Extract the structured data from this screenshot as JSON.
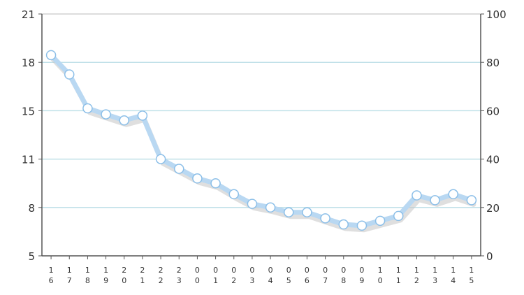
{
  "chart_data": {
    "type": "line",
    "title": "",
    "xlabel": "",
    "ylabel": "",
    "categories": [
      "16",
      "17",
      "18",
      "19",
      "20",
      "21",
      "22",
      "23",
      "00",
      "01",
      "02",
      "03",
      "04",
      "05",
      "06",
      "07",
      "08",
      "09",
      "10",
      "11",
      "12",
      "13",
      "14",
      "15"
    ],
    "series": [
      {
        "values": [
          83,
          75,
          61,
          58.5,
          56,
          58,
          40,
          36,
          32,
          30,
          25.5,
          21.5,
          20,
          18,
          18,
          15.5,
          13,
          12.5,
          14.5,
          16.5,
          25,
          23,
          25.5,
          23
        ]
      }
    ],
    "ylim_right": [
      0,
      100
    ],
    "yticks_right": [
      0,
      20,
      40,
      60,
      80,
      100
    ],
    "yticks_left": [
      "5",
      "8",
      "11",
      "15",
      "18",
      "21"
    ],
    "grid": true,
    "colors": {
      "line": "#b9d8f2",
      "shadow": "#c4c4c4",
      "marker_fill": "#ffffff",
      "marker_stroke": "#8cbfe8",
      "grid": "#bfe0e8",
      "frame": "#bbbbbb"
    }
  }
}
